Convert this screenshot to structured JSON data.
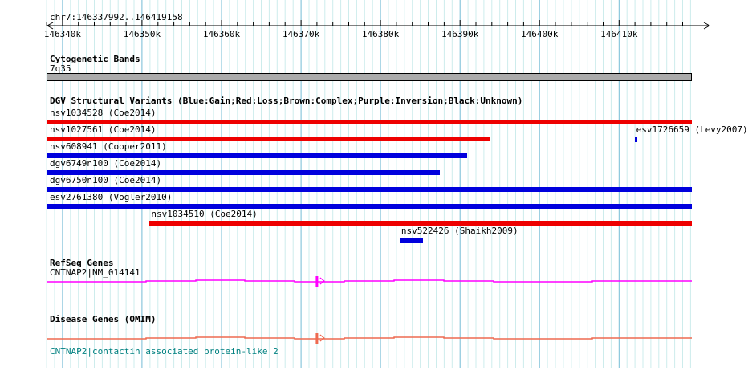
{
  "header": {
    "region_label": "chr7:146337992..146419158"
  },
  "sections": {
    "cytogenetic": {
      "title": "Cytogenetic Bands",
      "band_label": "7q35"
    },
    "dgv": {
      "title": "DGV Structural Variants (Blue:Gain;Red:Loss;Brown:Complex;Purple:Inversion;Black:Unknown)"
    },
    "refseq": {
      "title": "RefSeq Genes",
      "gene_label": "CNTNAP2|NM_014141"
    },
    "omim": {
      "title": "Disease Genes (OMIM)",
      "gene_label": "CNTNAP2|contactin associated protein-like 2"
    }
  },
  "colors": {
    "gain": "#0000dd",
    "loss": "#ee0000",
    "grid_light": "#cdecec",
    "grid_major": "#74bcd6",
    "band_fill": "#ababab",
    "refseq_line": "#ff00ff",
    "omim_line": "#ee6a50",
    "omim_gene_text": "#008080",
    "axis": "#000000"
  },
  "chart_data": {
    "type": "genome-tracks",
    "region": {
      "chrom": "chr7",
      "start": 146337992,
      "end": 146419158
    },
    "axis": {
      "major_tick_bp": 10000,
      "minor_tick_bp": 2000,
      "grid_bp": 1000,
      "major_ticks": [
        {
          "bp": 146340000,
          "label": "146340k"
        },
        {
          "bp": 146350000,
          "label": "146350k"
        },
        {
          "bp": 146360000,
          "label": "146360k"
        },
        {
          "bp": 146370000,
          "label": "146370k"
        },
        {
          "bp": 146380000,
          "label": "146380k"
        },
        {
          "bp": 146390000,
          "label": "146390k"
        },
        {
          "bp": 146400000,
          "label": "146400k"
        },
        {
          "bp": 146410000,
          "label": "146410k"
        }
      ]
    },
    "cytogenetic_band": {
      "name": "7q35",
      "start": 146330000,
      "end": 146419158
    },
    "variants": [
      {
        "id": "nsv1034528",
        "citation": "Coe2014",
        "class": "loss",
        "start": 146330000,
        "end": 146425000,
        "row": 0
      },
      {
        "id": "nsv1027561",
        "citation": "Coe2014",
        "class": "loss",
        "start": 146330000,
        "end": 146393800,
        "row": 1
      },
      {
        "id": "esv1726659",
        "citation": "Levy2007",
        "class": "gain",
        "start": 146411950,
        "end": 146412250,
        "row": 1
      },
      {
        "id": "nsv608941",
        "citation": "Cooper2011",
        "class": "gain",
        "start": 146330000,
        "end": 146390900,
        "row": 2
      },
      {
        "id": "dgv6749n100",
        "citation": "Coe2014",
        "class": "gain",
        "start": 146330000,
        "end": 146387450,
        "row": 3
      },
      {
        "id": "dgv6750n100",
        "citation": "Coe2014",
        "class": "gain",
        "start": 146330000,
        "end": 146425000,
        "row": 4
      },
      {
        "id": "esv2761380",
        "citation": "Vogler2010",
        "class": "gain",
        "start": 146330000,
        "end": 146425000,
        "row": 5
      },
      {
        "id": "nsv1034510",
        "citation": "Coe2014",
        "class": "loss",
        "start": 146350950,
        "end": 146425000,
        "row": 6
      },
      {
        "id": "nsv522426",
        "citation": "Shaikh2009",
        "class": "gain",
        "start": 146382400,
        "end": 146385300,
        "row": 7
      }
    ],
    "genes": [
      {
        "track": "refseq",
        "name": "CNTNAP2|NM_014141",
        "exon_bp": 146372000,
        "strand": "+"
      },
      {
        "track": "omim",
        "name": "CNTNAP2|contactin associated protein-like 2",
        "exon_bp": 146372000,
        "strand": "+"
      }
    ]
  }
}
